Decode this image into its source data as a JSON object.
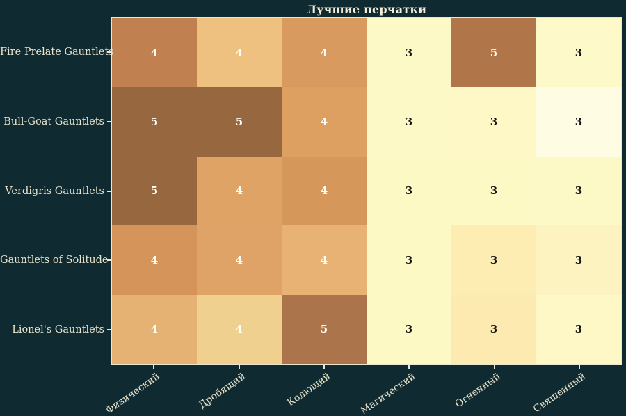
{
  "figure": {
    "background_color": "#0f2a31",
    "label_color": "#e9e3cb",
    "title_color": "#f3edd9",
    "spine_color": "#ece6ce"
  },
  "chart_data": {
    "type": "heatmap",
    "title": "Лучшие перчатки",
    "rows": [
      "Fire Prelate Gauntlets",
      "Bull-Goat Gauntlets",
      "Verdigris Gauntlets",
      "Gauntlets of Solitude",
      "Lionel's Gauntlets"
    ],
    "columns": [
      "Физический",
      "Дробящий",
      "Колющий",
      "Магический",
      "Огненный",
      "Священный"
    ],
    "values": [
      [
        4,
        4,
        4,
        3,
        5,
        3
      ],
      [
        5,
        5,
        4,
        3,
        3,
        3
      ],
      [
        5,
        4,
        4,
        3,
        3,
        3
      ],
      [
        4,
        4,
        4,
        3,
        3,
        3
      ],
      [
        4,
        4,
        5,
        3,
        3,
        3
      ]
    ],
    "cell_colors": [
      [
        "#c08050",
        "#eec181",
        "#d89a5e",
        "#fdf9c7",
        "#b0764a",
        "#fdf9c8"
      ],
      [
        "#97673f",
        "#97673f",
        "#dda061",
        "#fdf9c7",
        "#fdf8c6",
        "#fefce2"
      ],
      [
        "#97673f",
        "#e0a366",
        "#d6975b",
        "#fdf9c5",
        "#fdf9c5",
        "#fdf9c7"
      ],
      [
        "#d5955a",
        "#dfa367",
        "#e7b273",
        "#fdf9c5",
        "#fdedb2",
        "#fdf3c0"
      ],
      [
        "#e6b273",
        "#f0d08f",
        "#ab744a",
        "#fdf9c5",
        "#fdeab0",
        "#fef7c6"
      ]
    ],
    "annot_is_light": [
      [
        true,
        true,
        true,
        false,
        true,
        false
      ],
      [
        true,
        true,
        true,
        false,
        false,
        false
      ],
      [
        true,
        true,
        true,
        false,
        false,
        false
      ],
      [
        true,
        true,
        true,
        false,
        false,
        false
      ],
      [
        true,
        true,
        true,
        false,
        false,
        false
      ]
    ],
    "annot_colors": {
      "light": "#fffef6",
      "dark": "#131313"
    },
    "layout": {
      "legend": "none",
      "grid": "off",
      "x_tick_rotation_deg": -35
    }
  }
}
